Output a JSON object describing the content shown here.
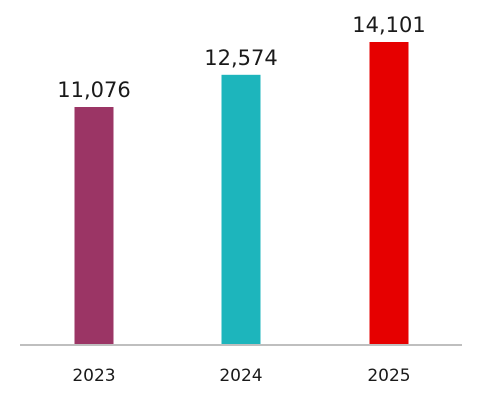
{
  "chart_data": {
    "type": "bar",
    "categories": [
      "2023",
      "2024",
      "2025"
    ],
    "values": [
      11076,
      12574,
      14101
    ],
    "value_labels": [
      "11,076",
      "12,574",
      "14,101"
    ],
    "colors": [
      "#9b3565",
      "#1db5bc",
      "#e60000"
    ],
    "axis_color": "#bfbfbf",
    "ylim": [
      0,
      14101
    ],
    "title": "",
    "xlabel": "",
    "ylabel": "",
    "grid": false,
    "legend": "none"
  }
}
